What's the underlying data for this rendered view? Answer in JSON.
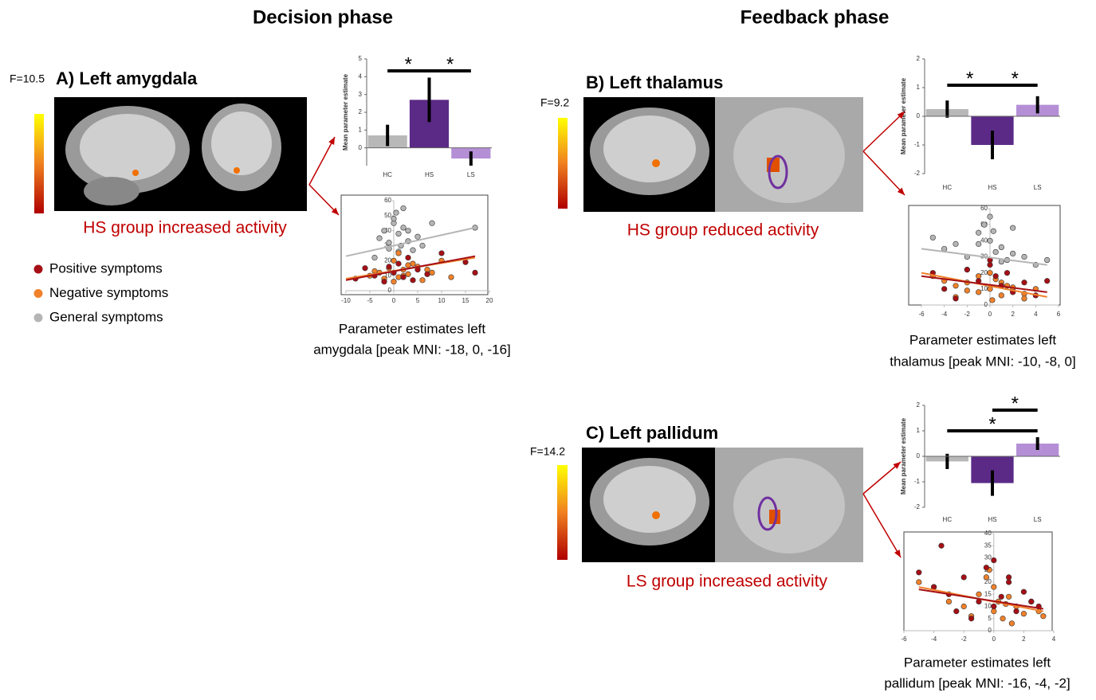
{
  "headers": [
    "Decision phase",
    "Feedback phase"
  ],
  "legend": [
    {
      "label": "Positive symptoms",
      "color": "#a50f15"
    },
    {
      "label": "Negative symptoms",
      "color": "#f0812a"
    },
    {
      "label": "General symptoms",
      "color": "#b5b5b5"
    }
  ],
  "panels": [
    {
      "title": "A) Left amygdala",
      "colorbar_label": "F=10.5",
      "result": "HS group increased activity",
      "caption": [
        "Parameter estimates left",
        "amygdala [peak MNI: -18, 0, -16]"
      ],
      "bar": {
        "type": "bar",
        "ylabel": "Mean parameter estimate",
        "categories": [
          "HC",
          "HS",
          "LS"
        ],
        "values": [
          0.7,
          2.7,
          -0.6
        ],
        "errors": [
          0.6,
          1.25,
          0.4
        ],
        "colors": [
          "#b8b8b8",
          "#5b2a86",
          "#b48fd6"
        ],
        "ylim": [
          -1,
          5
        ],
        "yticks": [
          0,
          1,
          2,
          3,
          4,
          5
        ],
        "significance": [
          "*",
          "*"
        ]
      },
      "scatter": {
        "type": "scatter",
        "xlim": [
          -10,
          20
        ],
        "xticks": [
          -10,
          -5,
          0,
          5,
          10,
          15,
          20
        ],
        "ylim": [
          0,
          60
        ],
        "yticks": [
          0,
          10,
          20,
          30,
          40,
          50,
          60
        ],
        "series": [
          {
            "color": "#b5b5b5",
            "x": [
              -3,
              -2,
              -1,
              0,
              0.5,
              1,
              1.5,
              2,
              3,
              4,
              -4,
              5,
              8,
              17,
              1,
              0,
              2,
              -1,
              3,
              6
            ],
            "y": [
              35,
              40,
              28,
              45,
              52,
              38,
              30,
              42,
              33,
              27,
              22,
              36,
              45,
              42,
              26,
              48,
              55,
              32,
              40,
              30
            ],
            "trend_x": [
              -10,
              17
            ],
            "trend_y": [
              23,
              42
            ]
          },
          {
            "color": "#f0812a",
            "x": [
              -5,
              -3,
              -2,
              -1,
              0,
              1,
              2,
              3,
              4,
              5,
              6,
              8,
              10,
              -4,
              0,
              1,
              2,
              3,
              12,
              7
            ],
            "y": [
              10,
              12,
              8,
              15,
              20,
              9,
              14,
              11,
              18,
              16,
              7,
              12,
              20,
              13,
              6,
              25,
              10,
              17,
              9,
              14
            ],
            "trend_x": [
              -10,
              17
            ],
            "trend_y": [
              8,
              22
            ]
          },
          {
            "color": "#a50f15",
            "x": [
              -8,
              -6,
              -4,
              -2,
              0,
              1,
              2,
              3,
              5,
              7,
              10,
              15,
              17,
              -1,
              4
            ],
            "y": [
              8,
              15,
              10,
              6,
              12,
              18,
              9,
              22,
              14,
              11,
              25,
              19,
              12,
              16,
              7
            ],
            "trend_x": [
              -10,
              17
            ],
            "trend_y": [
              7,
              23
            ]
          }
        ]
      }
    },
    {
      "title": "B) Left thalamus",
      "colorbar_label": "F=9.2",
      "result": "HS group reduced activity",
      "caption": [
        "Parameter estimates left",
        "thalamus [peak MNI: -10, -8, 0]"
      ],
      "bar": {
        "type": "bar",
        "ylabel": "Mean parameter estimate",
        "categories": [
          "HC",
          "HS",
          "LS"
        ],
        "values": [
          0.25,
          -1.0,
          0.4
        ],
        "errors": [
          0.3,
          0.5,
          0.3
        ],
        "colors": [
          "#b8b8b8",
          "#5b2a86",
          "#b48fd6"
        ],
        "ylim": [
          -2,
          2
        ],
        "yticks": [
          -2,
          -1,
          0,
          1,
          2
        ],
        "significance": [
          "*",
          "*"
        ]
      },
      "scatter": {
        "type": "scatter",
        "xlim": [
          -6,
          6
        ],
        "xticks": [
          -6,
          -4,
          -2,
          0,
          2,
          4,
          6
        ],
        "ylim": [
          0,
          60
        ],
        "yticks": [
          0,
          10,
          20,
          30,
          40,
          50,
          60
        ],
        "series": [
          {
            "color": "#b5b5b5",
            "x": [
              -5,
              -4,
              -3,
              -2,
              -1,
              -0.5,
              0,
              0.5,
              1,
              1.5,
              2,
              3,
              4,
              5,
              -2,
              -1,
              0,
              1,
              2,
              0.3
            ],
            "y": [
              42,
              35,
              38,
              30,
              45,
              50,
              40,
              33,
              36,
              28,
              48,
              30,
              25,
              28,
              22,
              38,
              55,
              27,
              32,
              46
            ],
            "trend_x": [
              -6,
              5
            ],
            "trend_y": [
              35,
              25
            ]
          },
          {
            "color": "#f0812a",
            "x": [
              -5,
              -4,
              -3,
              -2,
              -1,
              0,
              0.5,
              1,
              1.5,
              2,
              3,
              4,
              -3,
              -1,
              0,
              1,
              2,
              3,
              -2,
              0.2
            ],
            "y": [
              18,
              15,
              12,
              14,
              8,
              10,
              16,
              6,
              12,
              9,
              7,
              10,
              5,
              18,
              20,
              14,
              11,
              4,
              9,
              3
            ],
            "trend_x": [
              -6,
              5
            ],
            "trend_y": [
              20,
              5
            ]
          },
          {
            "color": "#a50f15",
            "x": [
              -5,
              -4,
              -2,
              -1,
              0,
              0.5,
              1,
              2,
              3,
              4,
              5,
              -3,
              0,
              1.5
            ],
            "y": [
              20,
              10,
              22,
              15,
              25,
              18,
              12,
              8,
              14,
              6,
              15,
              4,
              28,
              20
            ],
            "trend_x": [
              -6,
              5
            ],
            "trend_y": [
              18,
              8
            ]
          }
        ]
      }
    },
    {
      "title": "C) Left pallidum",
      "colorbar_label": "F=14.2",
      "result": "LS group increased activity",
      "caption": [
        "Parameter estimates left",
        "pallidum [peak MNI: -16, -4, -2]"
      ],
      "bar": {
        "type": "bar",
        "ylabel": "Mean parameter estimate",
        "categories": [
          "HC",
          "HS",
          "LS"
        ],
        "values": [
          -0.2,
          -1.05,
          0.5
        ],
        "errors": [
          0.3,
          0.5,
          0.25
        ],
        "colors": [
          "#b8b8b8",
          "#5b2a86",
          "#b48fd6"
        ],
        "ylim": [
          -2,
          2
        ],
        "yticks": [
          -2,
          -1,
          0,
          1,
          2
        ],
        "significance": [
          "*",
          "*"
        ]
      },
      "scatter": {
        "type": "scatter",
        "xlim": [
          -6,
          4
        ],
        "xticks": [
          -6,
          -4,
          -2,
          0,
          2,
          4
        ],
        "ylim": [
          0,
          40
        ],
        "yticks": [
          0,
          5,
          10,
          15,
          20,
          25,
          30,
          35,
          40
        ],
        "series": [
          {
            "color": "#f0812a",
            "x": [
              -5,
              -4,
              -3,
              -2,
              -1,
              -0.5,
              0,
              0.3,
              0.6,
              1,
              1.5,
              2,
              2.5,
              3,
              -1.5,
              0,
              0.8,
              1.2,
              -0.3,
              3.3
            ],
            "y": [
              20,
              18,
              12,
              10,
              15,
              22,
              8,
              12,
              5,
              14,
              10,
              7,
              12,
              8,
              6,
              18,
              11,
              3,
              25,
              6
            ],
            "trend_x": [
              -5,
              3.3
            ],
            "trend_y": [
              18,
              8
            ]
          },
          {
            "color": "#a50f15",
            "x": [
              -5,
              -4,
              -3.5,
              -3,
              -2,
              -1,
              -0.5,
              0,
              0.5,
              1,
              1.5,
              2,
              2.5,
              3,
              -1.5,
              1,
              0,
              -2.5
            ],
            "y": [
              24,
              18,
              35,
              15,
              22,
              12,
              26,
              10,
              14,
              20,
              8,
              16,
              12,
              10,
              5,
              22,
              29,
              8
            ],
            "trend_x": [
              -5,
              3.3
            ],
            "trend_y": [
              17,
              9
            ]
          }
        ]
      }
    }
  ]
}
